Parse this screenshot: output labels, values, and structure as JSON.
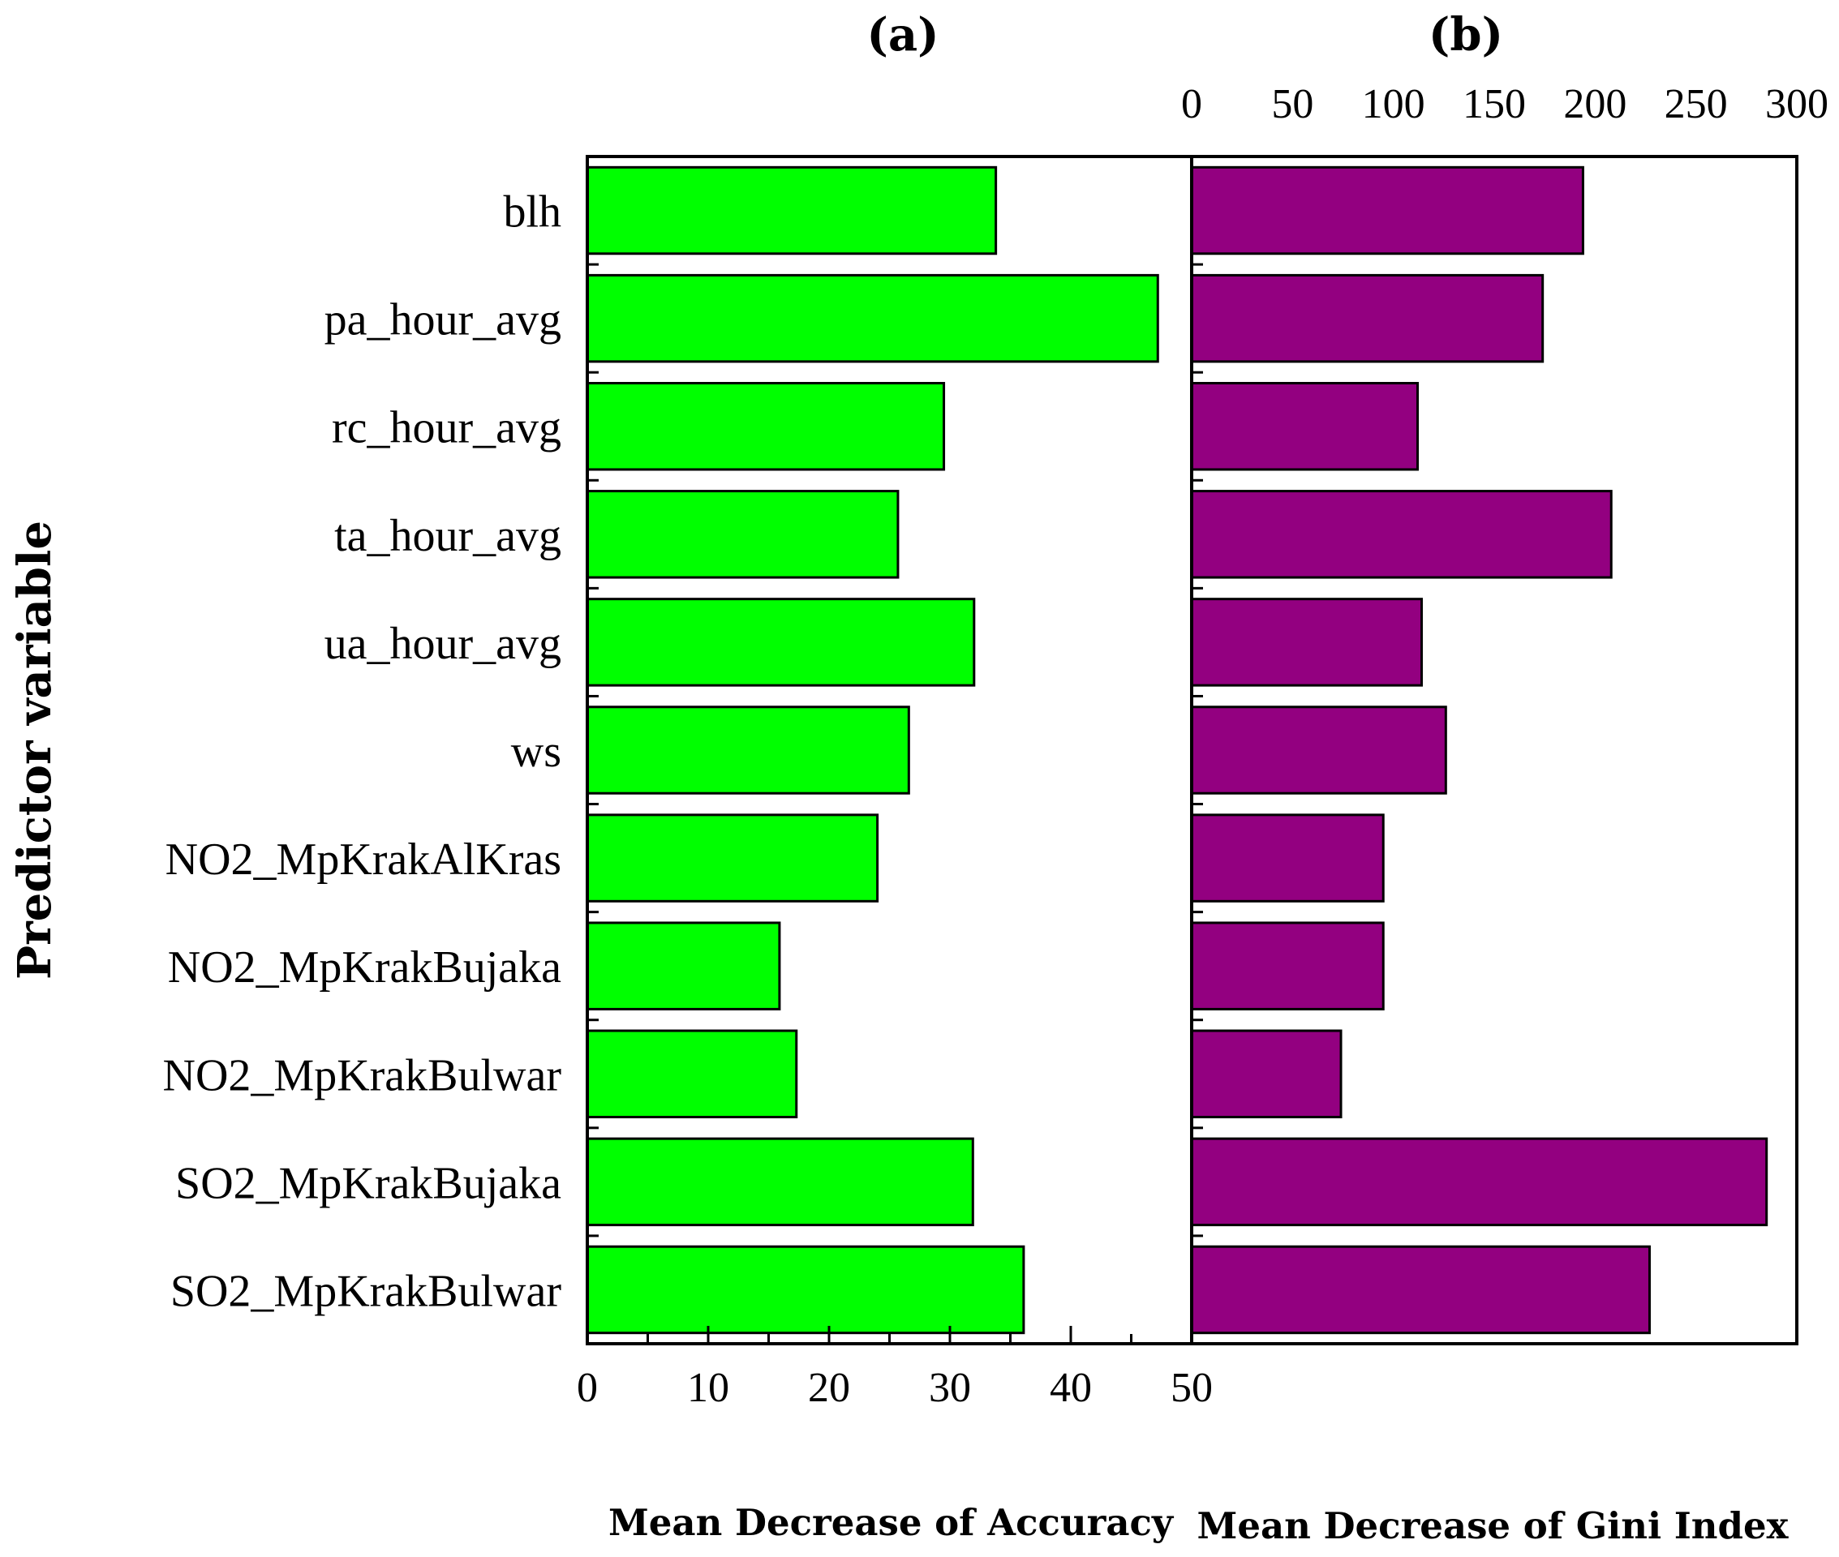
{
  "chart_data": [
    {
      "type": "bar",
      "orientation": "horizontal",
      "panel_label": "(a)",
      "categories": [
        "blh",
        "pa_hour_avg",
        "rc_hour_avg",
        "ta_hour_avg",
        "ua_hour_avg",
        "ws",
        "NO2_MpKrakAlKras",
        "NO2_MpKrakBujaka",
        "NO2_MpKrakBulwar",
        "SO2_MpKrakBujaka",
        "SO2_MpKrakBulwar"
      ],
      "values": [
        33.8,
        47.2,
        29.5,
        25.7,
        32.0,
        26.6,
        24.0,
        15.9,
        17.3,
        31.9,
        36.1
      ],
      "color": "#00ff00",
      "xlabel": "Mean Decrease of Accuracy",
      "xlim": [
        0,
        50
      ],
      "ticks": [
        "0",
        "10",
        "20",
        "30",
        "40",
        "50"
      ],
      "tick_position": "bottom"
    },
    {
      "type": "bar",
      "orientation": "horizontal",
      "panel_label": "(b)",
      "categories": [
        "blh",
        "pa_hour_avg",
        "rc_hour_avg",
        "ta_hour_avg",
        "ua_hour_avg",
        "ws",
        "NO2_MpKrakAlKras",
        "NO2_MpKrakBujaka",
        "NO2_MpKrakBulwar",
        "SO2_MpKrakBujaka",
        "SO2_MpKrakBulwar"
      ],
      "values": [
        194,
        174,
        112,
        208,
        114,
        126,
        95,
        95,
        74,
        285,
        227
      ],
      "color": "#930080",
      "xlabel": "Mean Decrease of Gini Index",
      "xlim": [
        0,
        300
      ],
      "ticks": [
        "0",
        "50",
        "100",
        "150",
        "200",
        "250",
        "300"
      ],
      "tick_position": "top"
    }
  ],
  "ylabel": "Predictor variable"
}
